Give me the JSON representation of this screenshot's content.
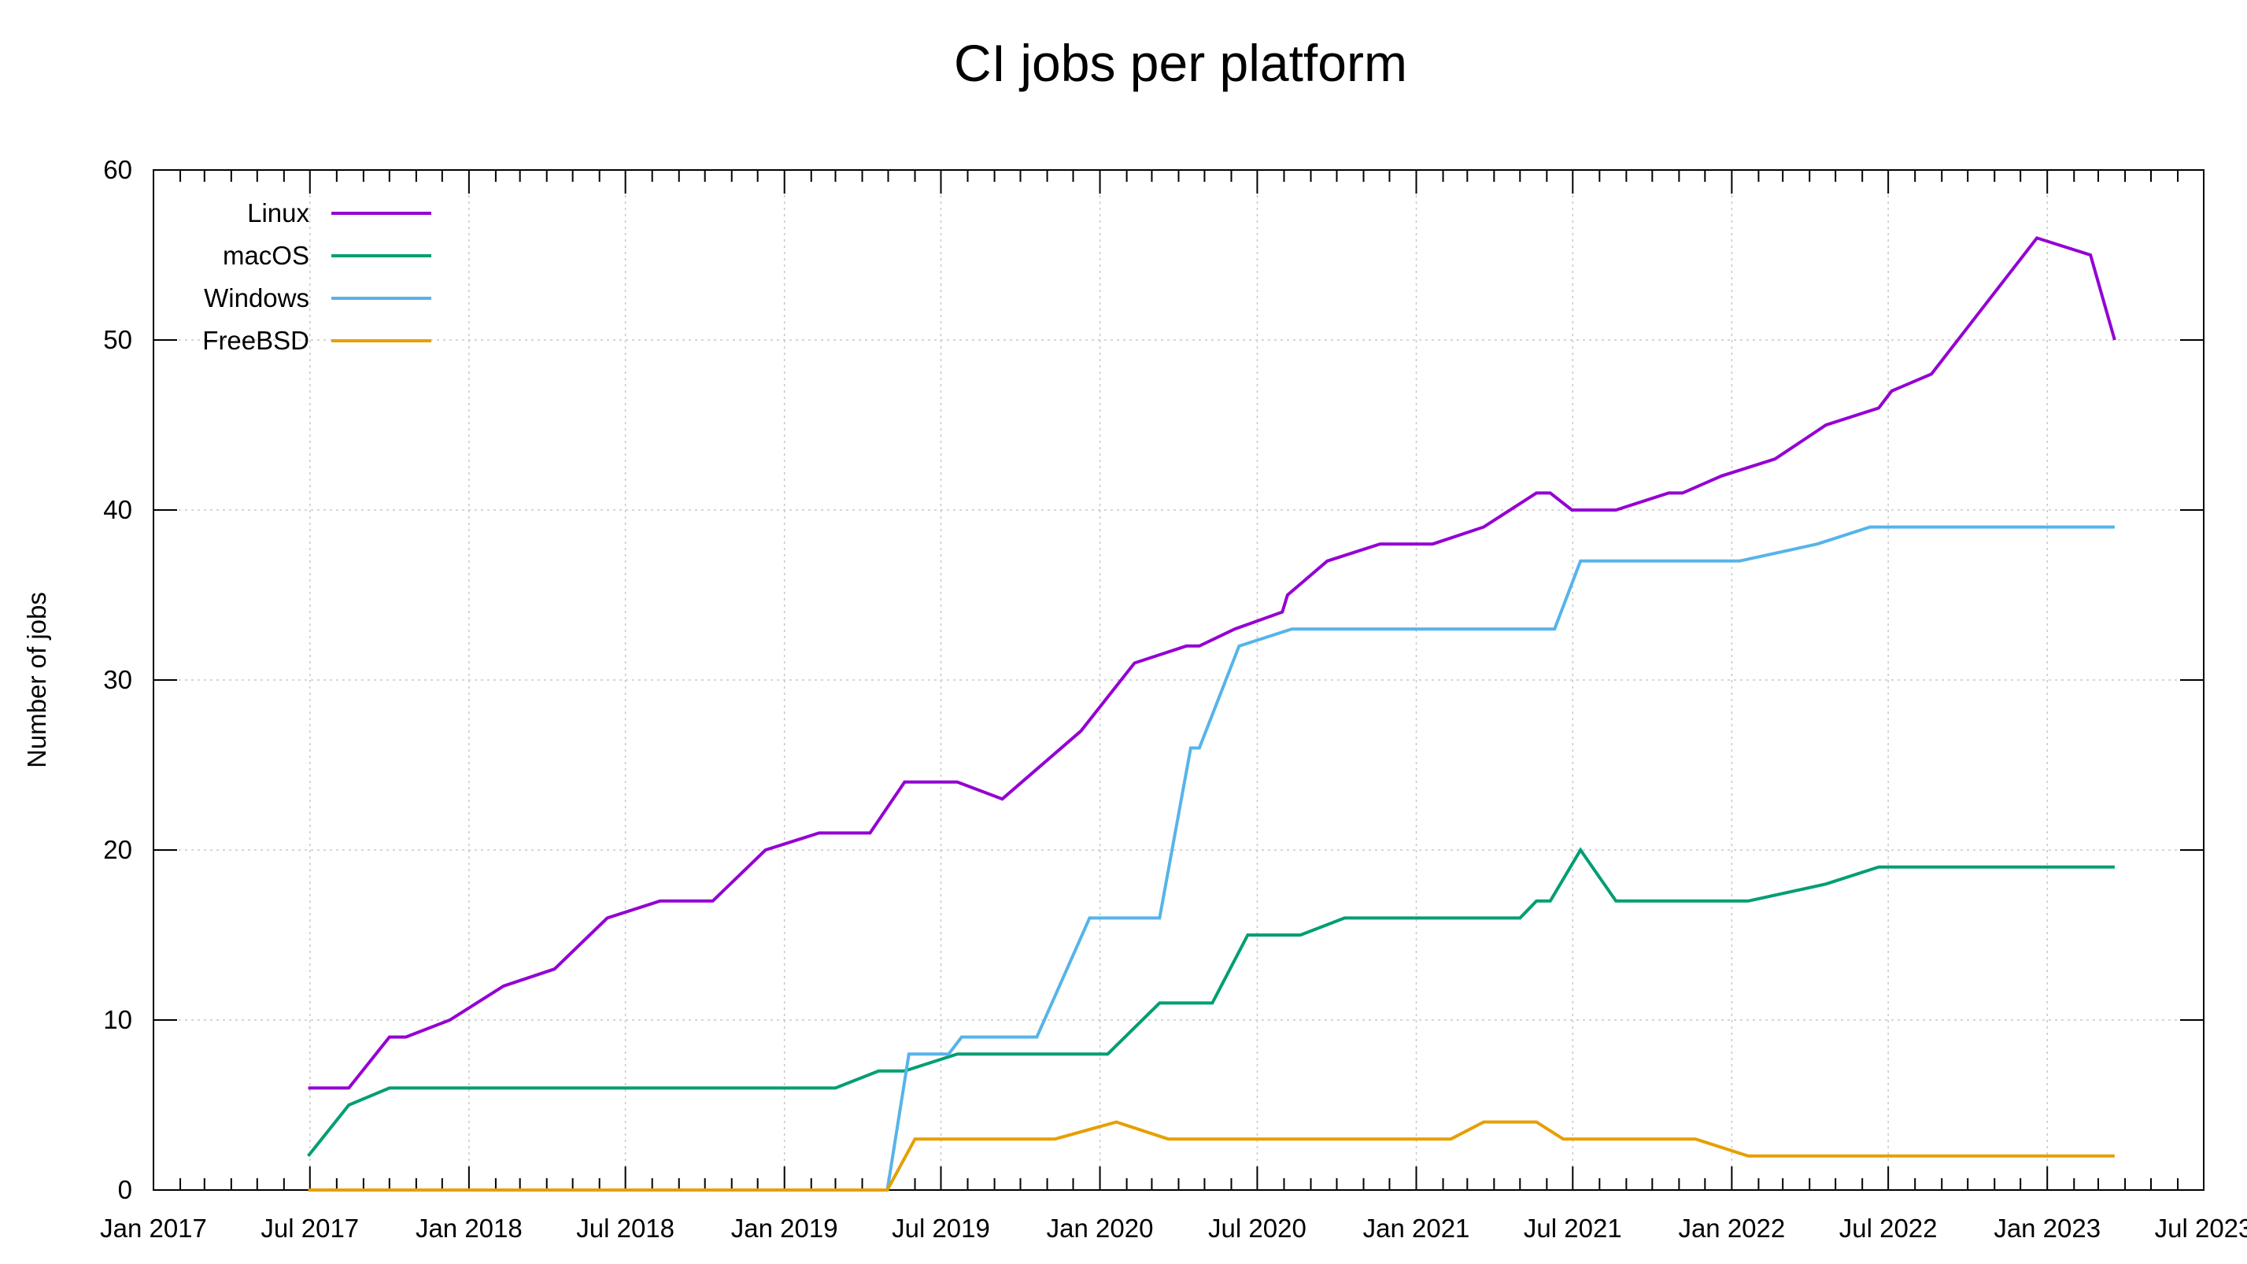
{
  "chart_data": {
    "type": "line",
    "title": "CI jobs per platform",
    "xlabel": "",
    "ylabel": "Number of jobs",
    "xlim": [
      "2017-01-01",
      "2023-07-01"
    ],
    "ylim": [
      0,
      60
    ],
    "y_ticks": [
      0,
      10,
      20,
      30,
      40,
      50,
      60
    ],
    "x_ticks": [
      {
        "date": "2017-01-01",
        "label": "Jan 2017"
      },
      {
        "date": "2017-07-01",
        "label": "Jul 2017"
      },
      {
        "date": "2018-01-01",
        "label": "Jan 2018"
      },
      {
        "date": "2018-07-01",
        "label": "Jul 2018"
      },
      {
        "date": "2019-01-01",
        "label": "Jan 2019"
      },
      {
        "date": "2019-07-01",
        "label": "Jul 2019"
      },
      {
        "date": "2020-01-01",
        "label": "Jan 2020"
      },
      {
        "date": "2020-07-01",
        "label": "Jul 2020"
      },
      {
        "date": "2021-01-01",
        "label": "Jan 2021"
      },
      {
        "date": "2021-07-01",
        "label": "Jul 2021"
      },
      {
        "date": "2022-01-01",
        "label": "Jan 2022"
      },
      {
        "date": "2022-07-01",
        "label": "Jul 2022"
      },
      {
        "date": "2023-01-01",
        "label": "Jan 2023"
      },
      {
        "date": "2023-07-01",
        "label": "Jul 2023"
      }
    ],
    "grid": true,
    "legend_position": "top-left",
    "series": [
      {
        "name": "Linux",
        "color": "#9400d3",
        "points": [
          [
            "2017-06-29",
            6
          ],
          [
            "2017-08-15",
            6
          ],
          [
            "2017-10-01",
            9
          ],
          [
            "2017-10-20",
            9
          ],
          [
            "2017-12-10",
            10
          ],
          [
            "2018-02-10",
            12
          ],
          [
            "2018-04-10",
            13
          ],
          [
            "2018-06-10",
            16
          ],
          [
            "2018-08-10",
            17
          ],
          [
            "2018-10-10",
            17
          ],
          [
            "2018-12-10",
            20
          ],
          [
            "2019-02-10",
            21
          ],
          [
            "2019-04-10",
            21
          ],
          [
            "2019-05-20",
            24
          ],
          [
            "2019-07-20",
            24
          ],
          [
            "2019-09-10",
            23
          ],
          [
            "2019-12-10",
            27
          ],
          [
            "2020-02-10",
            31
          ],
          [
            "2020-04-10",
            32
          ],
          [
            "2020-04-25",
            32
          ],
          [
            "2020-06-05",
            33
          ],
          [
            "2020-07-30",
            34
          ],
          [
            "2020-08-05",
            35
          ],
          [
            "2020-09-20",
            37
          ],
          [
            "2020-11-20",
            38
          ],
          [
            "2021-01-20",
            38
          ],
          [
            "2021-03-20",
            39
          ],
          [
            "2021-05-20",
            41
          ],
          [
            "2021-06-05",
            41
          ],
          [
            "2021-06-30",
            40
          ],
          [
            "2021-08-20",
            40
          ],
          [
            "2021-10-20",
            41
          ],
          [
            "2021-11-05",
            41
          ],
          [
            "2021-12-20",
            42
          ],
          [
            "2022-02-20",
            43
          ],
          [
            "2022-04-20",
            45
          ],
          [
            "2022-06-20",
            46
          ],
          [
            "2022-07-05",
            47
          ],
          [
            "2022-08-20",
            48
          ],
          [
            "2022-10-20",
            52
          ],
          [
            "2022-12-20",
            56
          ],
          [
            "2023-02-20",
            55
          ],
          [
            "2023-03-20",
            50
          ]
        ]
      },
      {
        "name": "macOS",
        "color": "#009e73",
        "points": [
          [
            "2017-06-29",
            2
          ],
          [
            "2017-08-15",
            5
          ],
          [
            "2017-10-01",
            6
          ],
          [
            "2019-03-01",
            6
          ],
          [
            "2019-04-20",
            7
          ],
          [
            "2019-05-20",
            7
          ],
          [
            "2019-07-20",
            8
          ],
          [
            "2020-01-10",
            8
          ],
          [
            "2020-03-10",
            11
          ],
          [
            "2020-05-10",
            11
          ],
          [
            "2020-06-20",
            15
          ],
          [
            "2020-08-20",
            15
          ],
          [
            "2020-10-10",
            16
          ],
          [
            "2021-05-01",
            16
          ],
          [
            "2021-05-20",
            17
          ],
          [
            "2021-06-05",
            17
          ],
          [
            "2021-07-10",
            20
          ],
          [
            "2021-08-20",
            17
          ],
          [
            "2022-01-20",
            17
          ],
          [
            "2022-04-20",
            18
          ],
          [
            "2022-06-20",
            19
          ],
          [
            "2023-03-20",
            19
          ]
        ]
      },
      {
        "name": "Windows",
        "color": "#56b4e9",
        "points": [
          [
            "2019-04-30",
            0
          ],
          [
            "2019-05-25",
            8
          ],
          [
            "2019-07-10",
            8
          ],
          [
            "2019-07-25",
            9
          ],
          [
            "2019-10-20",
            9
          ],
          [
            "2019-12-20",
            16
          ],
          [
            "2020-03-10",
            16
          ],
          [
            "2020-04-15",
            26
          ],
          [
            "2020-04-25",
            26
          ],
          [
            "2020-06-10",
            32
          ],
          [
            "2020-08-10",
            33
          ],
          [
            "2021-06-10",
            33
          ],
          [
            "2021-07-10",
            37
          ],
          [
            "2022-01-10",
            37
          ],
          [
            "2022-04-10",
            38
          ],
          [
            "2022-06-10",
            39
          ],
          [
            "2023-03-20",
            39
          ]
        ]
      },
      {
        "name": "FreeBSD",
        "color": "#e69f00",
        "points": [
          [
            "2017-06-29",
            0
          ],
          [
            "2019-04-30",
            0
          ],
          [
            "2019-06-01",
            3
          ],
          [
            "2019-11-10",
            3
          ],
          [
            "2020-01-20",
            4
          ],
          [
            "2020-03-20",
            3
          ],
          [
            "2021-02-10",
            3
          ],
          [
            "2021-03-20",
            4
          ],
          [
            "2021-05-20",
            4
          ],
          [
            "2021-06-20",
            3
          ],
          [
            "2021-11-20",
            3
          ],
          [
            "2022-01-20",
            2
          ],
          [
            "2023-03-20",
            2
          ]
        ]
      }
    ]
  }
}
